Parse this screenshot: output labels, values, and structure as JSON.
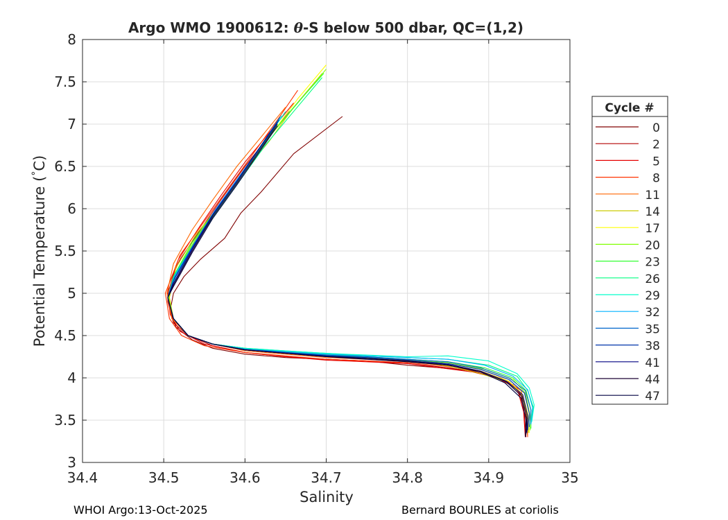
{
  "chart_data": {
    "type": "line",
    "title_prefix": "Argo WMO 1900612: ",
    "title_symbol": "θ",
    "title_suffix": "-S below 500 dbar,  QC=(1,2)",
    "xlabel": "Salinity",
    "ylabel_prefix": "Potential Temperature (",
    "ylabel_degree": "°",
    "ylabel_suffix": "C)",
    "xlim": [
      34.4,
      35.0
    ],
    "ylim": [
      3,
      8
    ],
    "xticks": [
      "34.4",
      "34.5",
      "34.6",
      "34.7",
      "34.8",
      "34.9",
      "35"
    ],
    "yticks": [
      "3",
      "3.5",
      "4",
      "4.5",
      "5",
      "5.5",
      "6",
      "6.5",
      "7",
      "7.5",
      "8"
    ],
    "grid": true,
    "legend_title": "Cycle #",
    "legend_position": "right",
    "series": [
      {
        "name": "0",
        "color": "#800000",
        "salinity": [
          34.72,
          34.66,
          34.62,
          34.595,
          34.575,
          34.545,
          34.525,
          34.512,
          34.508,
          34.515,
          34.535,
          34.56,
          34.6,
          34.65,
          34.7,
          34.75,
          34.8,
          34.84,
          34.88,
          34.91,
          34.93,
          34.94,
          34.945,
          34.947
        ],
        "theta": [
          7.09,
          6.65,
          6.2,
          5.95,
          5.65,
          5.4,
          5.2,
          5.0,
          4.8,
          4.6,
          4.45,
          4.35,
          4.28,
          4.24,
          4.22,
          4.2,
          4.15,
          4.12,
          4.08,
          4.0,
          3.92,
          3.82,
          3.65,
          3.4
        ]
      },
      {
        "name": "2",
        "color": "#b30000",
        "salinity": [
          34.655,
          34.625,
          34.6,
          34.57,
          34.545,
          34.52,
          34.506,
          34.505,
          34.512,
          34.53,
          34.56,
          34.6,
          34.65,
          34.7,
          34.75,
          34.8,
          34.84,
          34.88,
          34.91,
          34.93,
          34.94,
          34.944,
          34.946
        ],
        "theta": [
          7.15,
          6.8,
          6.5,
          6.1,
          5.75,
          5.4,
          5.1,
          4.9,
          4.65,
          4.5,
          4.38,
          4.3,
          4.25,
          4.22,
          4.2,
          4.17,
          4.13,
          4.08,
          4.0,
          3.9,
          3.8,
          3.55,
          3.3
        ]
      },
      {
        "name": "5",
        "color": "#e60000",
        "salinity": [
          34.66,
          34.63,
          34.6,
          34.57,
          34.545,
          34.518,
          34.505,
          34.508,
          34.52,
          34.55,
          34.6,
          34.65,
          34.7,
          34.75,
          34.8,
          34.84,
          34.88,
          34.91,
          34.935,
          34.943,
          34.945
        ],
        "theta": [
          7.25,
          6.9,
          6.55,
          6.15,
          5.8,
          5.4,
          5.0,
          4.75,
          4.55,
          4.4,
          4.3,
          4.25,
          4.21,
          4.19,
          4.17,
          4.12,
          4.07,
          4.0,
          3.88,
          3.6,
          3.3
        ]
      },
      {
        "name": "8",
        "color": "#ff3300",
        "salinity": [
          34.665,
          34.64,
          34.61,
          34.58,
          34.55,
          34.52,
          34.502,
          34.507,
          34.522,
          34.55,
          34.6,
          34.65,
          34.7,
          34.75,
          34.8,
          34.845,
          34.885,
          34.915,
          34.935,
          34.945,
          34.948
        ],
        "theta": [
          7.4,
          7.05,
          6.65,
          6.25,
          5.85,
          5.45,
          5.0,
          4.7,
          4.5,
          4.38,
          4.3,
          4.26,
          4.22,
          4.2,
          4.18,
          4.14,
          4.08,
          4.0,
          3.88,
          3.6,
          3.3
        ]
      },
      {
        "name": "11",
        "color": "#ff6600",
        "salinity": [
          34.65,
          34.62,
          34.59,
          34.56,
          34.535,
          34.512,
          34.504,
          34.51,
          34.53,
          34.56,
          34.6,
          34.65,
          34.7,
          34.75,
          34.8,
          34.85,
          34.89,
          34.92,
          34.94,
          34.946,
          34.948
        ],
        "theta": [
          7.2,
          6.85,
          6.5,
          6.1,
          5.75,
          5.35,
          5.0,
          4.7,
          4.5,
          4.4,
          4.32,
          4.28,
          4.24,
          4.22,
          4.19,
          4.15,
          4.08,
          3.98,
          3.85,
          3.6,
          3.32
        ]
      },
      {
        "name": "14",
        "color": "#cccc00",
        "salinity": [
          34.695,
          34.66,
          34.63,
          34.6,
          34.57,
          34.54,
          34.515,
          34.507,
          34.512,
          34.53,
          34.56,
          34.6,
          34.65,
          34.7,
          34.75,
          34.8,
          34.85,
          34.89,
          34.92,
          34.94,
          34.947,
          34.949
        ],
        "theta": [
          7.6,
          7.2,
          6.8,
          6.45,
          6.05,
          5.7,
          5.3,
          4.95,
          4.7,
          4.5,
          4.4,
          4.34,
          4.3,
          4.26,
          4.23,
          4.2,
          4.14,
          4.05,
          3.96,
          3.82,
          3.58,
          3.35
        ]
      },
      {
        "name": "17",
        "color": "#ffff00",
        "salinity": [
          34.7,
          34.665,
          34.63,
          34.6,
          34.57,
          34.54,
          34.515,
          34.506,
          34.512,
          34.53,
          34.56,
          34.6,
          34.65,
          34.7,
          34.75,
          34.8,
          34.85,
          34.89,
          34.925,
          34.942,
          34.948,
          34.95
        ],
        "theta": [
          7.7,
          7.3,
          6.85,
          6.45,
          6.05,
          5.65,
          5.25,
          4.95,
          4.7,
          4.5,
          4.4,
          4.34,
          4.3,
          4.27,
          4.24,
          4.21,
          4.16,
          4.08,
          3.96,
          3.8,
          3.58,
          3.35
        ]
      },
      {
        "name": "20",
        "color": "#80ff00",
        "salinity": [
          34.7,
          34.665,
          34.63,
          34.6,
          34.57,
          34.54,
          34.515,
          34.506,
          34.512,
          34.53,
          34.56,
          34.6,
          34.65,
          34.7,
          34.75,
          34.8,
          34.85,
          34.895,
          34.93,
          34.945,
          34.95,
          34.951
        ],
        "theta": [
          7.65,
          7.25,
          6.85,
          6.45,
          6.05,
          5.65,
          5.25,
          4.95,
          4.7,
          4.5,
          4.4,
          4.35,
          4.31,
          4.27,
          4.24,
          4.21,
          4.18,
          4.1,
          3.98,
          3.82,
          3.6,
          3.38
        ]
      },
      {
        "name": "23",
        "color": "#33ff33",
        "salinity": [
          34.697,
          34.66,
          34.625,
          34.595,
          34.565,
          34.535,
          34.512,
          34.505,
          34.512,
          34.53,
          34.56,
          34.6,
          34.65,
          34.7,
          34.75,
          34.8,
          34.85,
          34.895,
          34.93,
          34.946,
          34.952,
          34.952
        ],
        "theta": [
          7.6,
          7.2,
          6.8,
          6.4,
          6.0,
          5.6,
          5.2,
          4.95,
          4.7,
          4.5,
          4.4,
          4.35,
          4.31,
          4.28,
          4.25,
          4.22,
          4.19,
          4.12,
          4.0,
          3.85,
          3.62,
          3.4
        ]
      },
      {
        "name": "26",
        "color": "#00ff80",
        "salinity": [
          34.695,
          34.66,
          34.625,
          34.595,
          34.565,
          34.535,
          34.512,
          34.505,
          34.512,
          34.53,
          34.56,
          34.6,
          34.65,
          34.7,
          34.75,
          34.8,
          34.85,
          34.9,
          34.935,
          34.948,
          34.955,
          34.952
        ],
        "theta": [
          7.55,
          7.15,
          6.75,
          6.35,
          5.95,
          5.55,
          5.2,
          4.95,
          4.7,
          4.5,
          4.4,
          4.35,
          4.32,
          4.29,
          4.26,
          4.24,
          4.22,
          4.15,
          4.02,
          3.85,
          3.65,
          3.45
        ]
      },
      {
        "name": "29",
        "color": "#00ffcc",
        "salinity": [
          34.65,
          34.625,
          34.6,
          34.57,
          34.54,
          34.515,
          34.505,
          34.512,
          34.53,
          34.56,
          34.6,
          34.65,
          34.7,
          34.75,
          34.8,
          34.85,
          34.9,
          34.935,
          34.95,
          34.956,
          34.953
        ],
        "theta": [
          7.15,
          6.8,
          6.45,
          6.05,
          5.6,
          5.2,
          4.95,
          4.7,
          4.5,
          4.4,
          4.35,
          4.32,
          4.29,
          4.27,
          4.25,
          4.26,
          4.2,
          4.05,
          3.88,
          3.68,
          3.48
        ]
      },
      {
        "name": "32",
        "color": "#00b3ff",
        "salinity": [
          34.645,
          34.62,
          34.595,
          34.565,
          34.538,
          34.513,
          34.505,
          34.512,
          34.53,
          34.56,
          34.6,
          34.65,
          34.7,
          34.75,
          34.8,
          34.85,
          34.895,
          34.93,
          34.948,
          34.954,
          34.952
        ],
        "theta": [
          7.1,
          6.75,
          6.4,
          6.0,
          5.6,
          5.2,
          4.95,
          4.7,
          4.5,
          4.4,
          4.34,
          4.31,
          4.28,
          4.26,
          4.24,
          4.22,
          4.15,
          4.02,
          3.86,
          3.65,
          3.45
        ]
      },
      {
        "name": "35",
        "color": "#0066cc",
        "salinity": [
          34.643,
          34.618,
          34.593,
          34.563,
          34.537,
          34.513,
          34.505,
          34.512,
          34.53,
          34.56,
          34.6,
          34.65,
          34.7,
          34.75,
          34.8,
          34.85,
          34.89,
          34.925,
          34.945,
          34.952,
          34.95
        ],
        "theta": [
          7.08,
          6.72,
          6.38,
          5.98,
          5.58,
          5.18,
          4.95,
          4.7,
          4.5,
          4.4,
          4.34,
          4.3,
          4.27,
          4.25,
          4.22,
          4.19,
          4.12,
          4.0,
          3.85,
          3.62,
          3.42
        ]
      },
      {
        "name": "38",
        "color": "#0033aa",
        "salinity": [
          34.642,
          34.617,
          34.592,
          34.562,
          34.536,
          34.512,
          34.505,
          34.512,
          34.53,
          34.56,
          34.6,
          34.65,
          34.7,
          34.75,
          34.8,
          34.85,
          34.89,
          34.925,
          34.944,
          34.95,
          34.948
        ],
        "theta": [
          7.05,
          6.7,
          6.35,
          5.95,
          5.55,
          5.15,
          4.95,
          4.7,
          4.5,
          4.4,
          4.33,
          4.3,
          4.26,
          4.24,
          4.21,
          4.17,
          4.1,
          3.98,
          3.82,
          3.58,
          3.38
        ]
      },
      {
        "name": "41",
        "color": "#000080",
        "salinity": [
          34.64,
          34.615,
          34.59,
          34.56,
          34.535,
          34.512,
          34.505,
          34.512,
          34.53,
          34.56,
          34.6,
          34.65,
          34.7,
          34.75,
          34.8,
          34.85,
          34.89,
          34.922,
          34.942,
          34.948,
          34.947
        ],
        "theta": [
          7.02,
          6.68,
          6.32,
          5.92,
          5.52,
          5.12,
          4.95,
          4.7,
          4.5,
          4.4,
          4.33,
          4.29,
          4.26,
          4.23,
          4.2,
          4.16,
          4.08,
          3.96,
          3.8,
          3.55,
          3.35
        ]
      },
      {
        "name": "44",
        "color": "#1a0033",
        "salinity": [
          34.64,
          34.615,
          34.59,
          34.56,
          34.535,
          34.512,
          34.505,
          34.512,
          34.53,
          34.56,
          34.6,
          34.65,
          34.7,
          34.75,
          34.8,
          34.85,
          34.89,
          34.922,
          34.941,
          34.947,
          34.946
        ],
        "theta": [
          7.0,
          6.65,
          6.3,
          5.9,
          5.5,
          5.1,
          4.95,
          4.7,
          4.5,
          4.4,
          4.33,
          4.29,
          4.25,
          4.23,
          4.2,
          4.15,
          4.08,
          3.95,
          3.78,
          3.52,
          3.33
        ]
      },
      {
        "name": "47",
        "color": "#000040",
        "salinity": [
          34.64,
          34.615,
          34.59,
          34.56,
          34.535,
          34.512,
          34.505,
          34.512,
          34.53,
          34.56,
          34.6,
          34.65,
          34.7,
          34.75,
          34.8,
          34.85,
          34.89,
          34.92,
          34.94,
          34.946,
          34.945
        ],
        "theta": [
          6.98,
          6.63,
          6.28,
          5.88,
          5.48,
          5.08,
          4.95,
          4.7,
          4.5,
          4.4,
          4.33,
          4.29,
          4.25,
          4.22,
          4.19,
          4.15,
          4.07,
          3.94,
          3.76,
          3.5,
          3.3
        ]
      }
    ]
  },
  "footer": {
    "left": "WHOI Argo:13-Oct-2025",
    "right": "Bernard BOURLES at coriolis"
  }
}
